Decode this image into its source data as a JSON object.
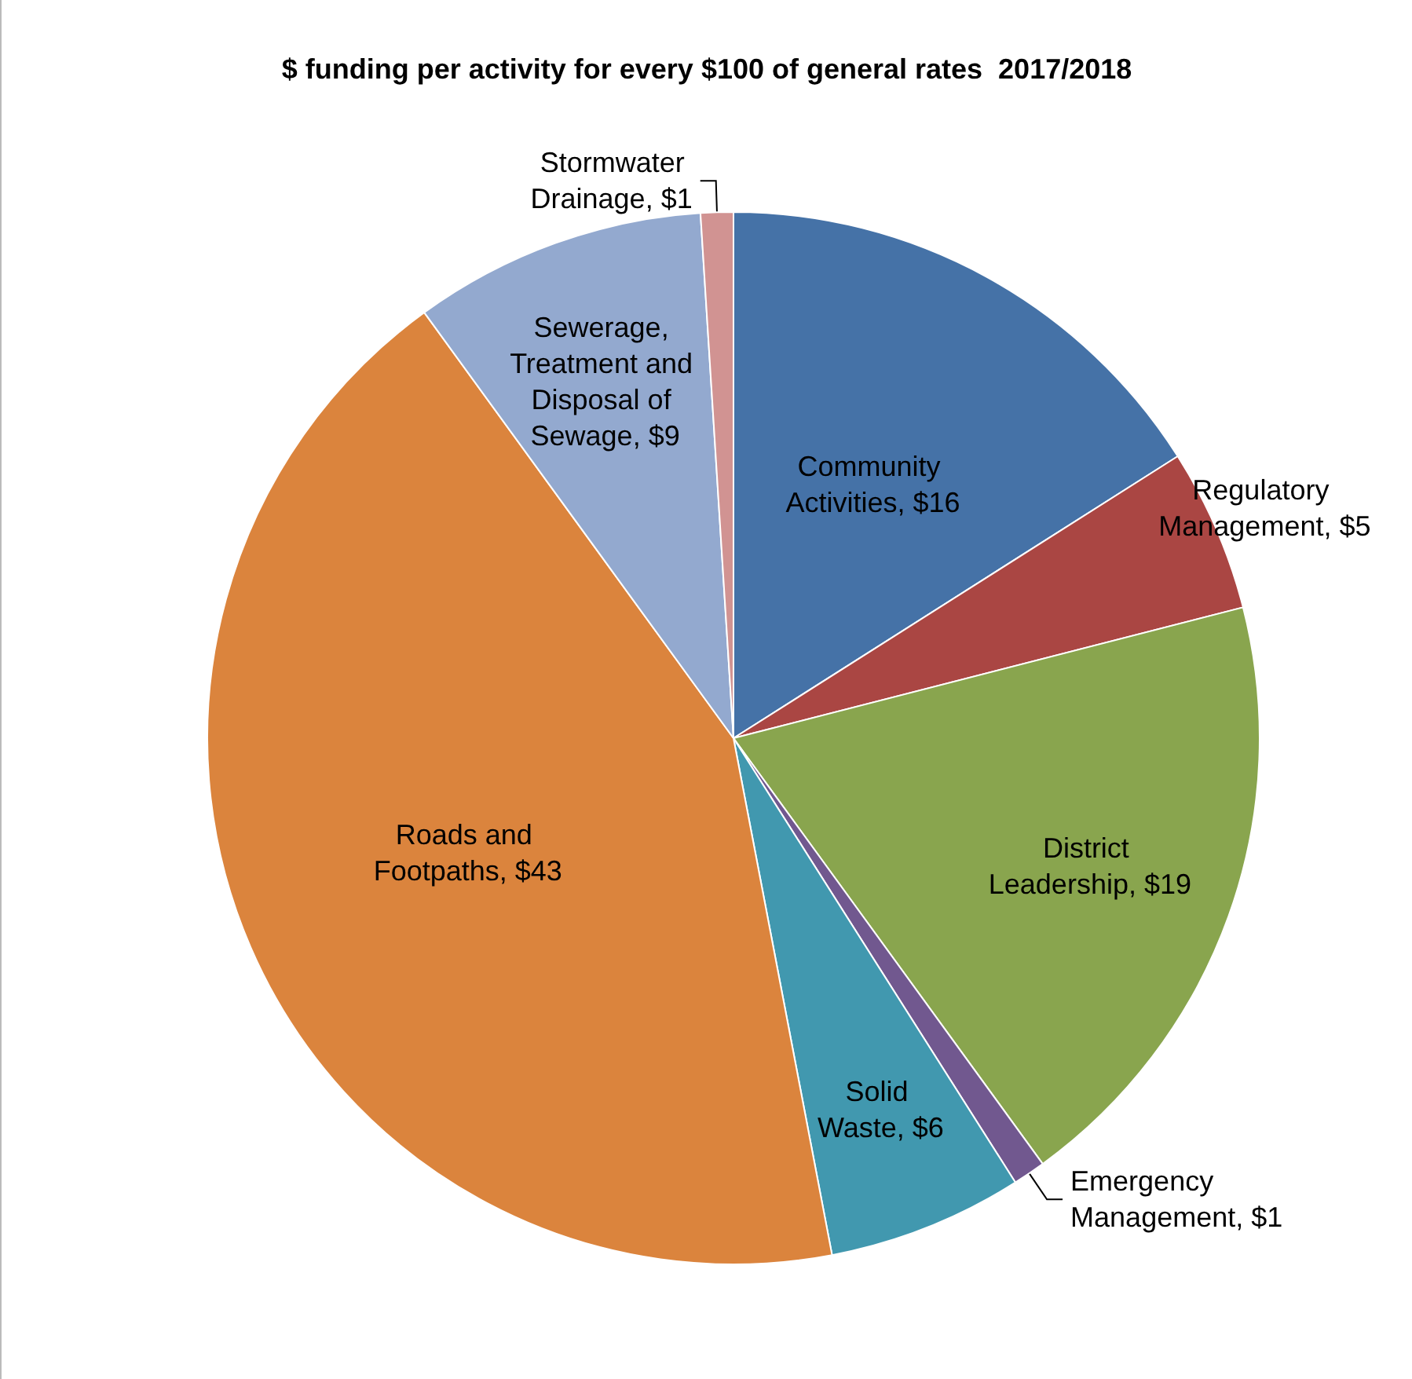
{
  "chart_data": {
    "type": "pie",
    "title": "$ funding per activity for every $100 of general rates  2017/2018",
    "categories": [
      "Community Activities",
      "Regulatory Management",
      "District Leadership",
      "Emergency Management",
      "Solid Waste",
      "Roads and Footpaths",
      "Sewerage, Treatment and Disposal of Sewage",
      "Stormwater Drainage"
    ],
    "values": [
      16,
      5,
      19,
      1,
      6,
      43,
      9,
      1
    ],
    "value_labels": [
      "$16",
      "$5",
      "$19",
      "$1",
      "$6",
      "$43",
      "$9",
      "$1"
    ],
    "colors": [
      "#4572a7",
      "#aa4643",
      "#89a54e",
      "#71588f",
      "#4198af",
      "#db843d",
      "#93a9cf",
      "#d19392"
    ],
    "legend": false
  }
}
